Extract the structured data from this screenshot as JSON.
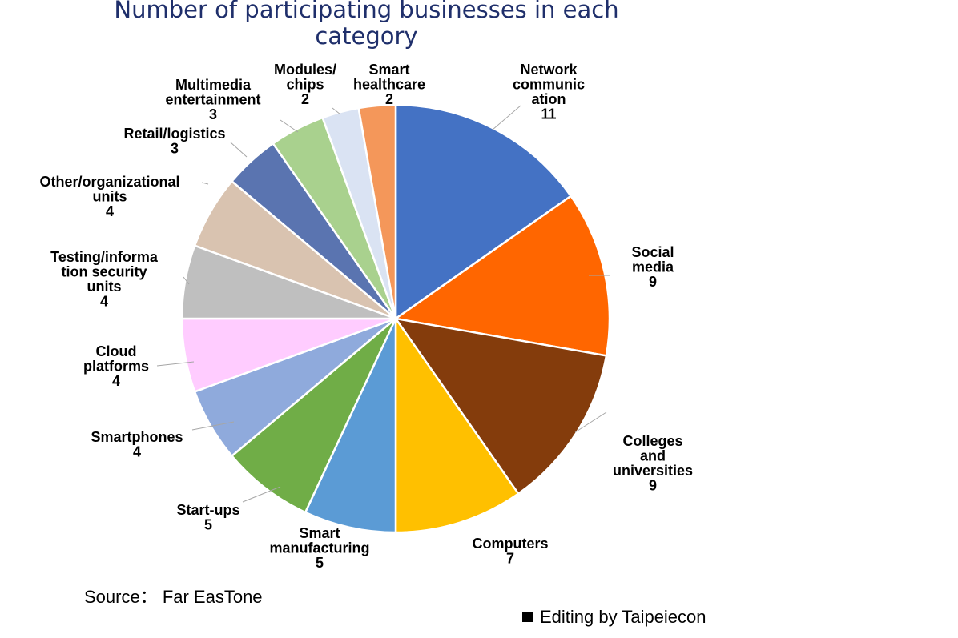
{
  "chart_data": {
    "type": "pie",
    "title": "Number of participating businesses in each category",
    "slices": [
      {
        "label": "Network communic ation",
        "label_lines": [
          "Network",
          "communic",
          "ation"
        ],
        "value": 11,
        "color": "#4472c4"
      },
      {
        "label": "Social media",
        "label_lines": [
          "Social",
          "media"
        ],
        "value": 9,
        "color": "#ff6600"
      },
      {
        "label": "Colleges and universities",
        "label_lines": [
          "Colleges",
          "and",
          "universities"
        ],
        "value": 9,
        "color": "#843c0c"
      },
      {
        "label": "Computers",
        "label_lines": [
          "Computers"
        ],
        "value": 7,
        "color": "#ffc000"
      },
      {
        "label": "Smart manufacturing",
        "label_lines": [
          "Smart",
          "manufacturing"
        ],
        "value": 5,
        "color": "#5b9bd5"
      },
      {
        "label": "Start-ups",
        "label_lines": [
          "Start-ups"
        ],
        "value": 5,
        "color": "#70ad47"
      },
      {
        "label": "Smartphones",
        "label_lines": [
          "Smartphones"
        ],
        "value": 4,
        "color": "#8faadc"
      },
      {
        "label": "Cloud platforms",
        "label_lines": [
          "Cloud",
          "platforms"
        ],
        "value": 4,
        "color": "#ffccff"
      },
      {
        "label": "Testing/informa tion security units",
        "label_lines": [
          "Testing/informa",
          "tion security",
          "units"
        ],
        "value": 4,
        "color": "#bfbfbf"
      },
      {
        "label": "Other/organizational units",
        "label_lines": [
          "Other/organizational",
          "units"
        ],
        "value": 4,
        "color": "#d9c3b0"
      },
      {
        "label": "Retail/logistics",
        "label_lines": [
          "Retail/logistics"
        ],
        "value": 3,
        "color": "#5a74b0"
      },
      {
        "label": "Multimedia entertainment",
        "label_lines": [
          "Multimedia",
          "entertainment"
        ],
        "value": 3,
        "color": "#a9d18e"
      },
      {
        "label": "Modules/ chips",
        "label_lines": [
          "Modules/",
          "chips"
        ],
        "value": 2,
        "color": "#dae3f3"
      },
      {
        "label": "Smart healthcare",
        "label_lines": [
          "Smart",
          "healthcare"
        ],
        "value": 2,
        "color": "#f4975a"
      }
    ]
  },
  "footer": {
    "source": "Source： Far EasTone",
    "editor": "Editing by Taipeiecon"
  }
}
